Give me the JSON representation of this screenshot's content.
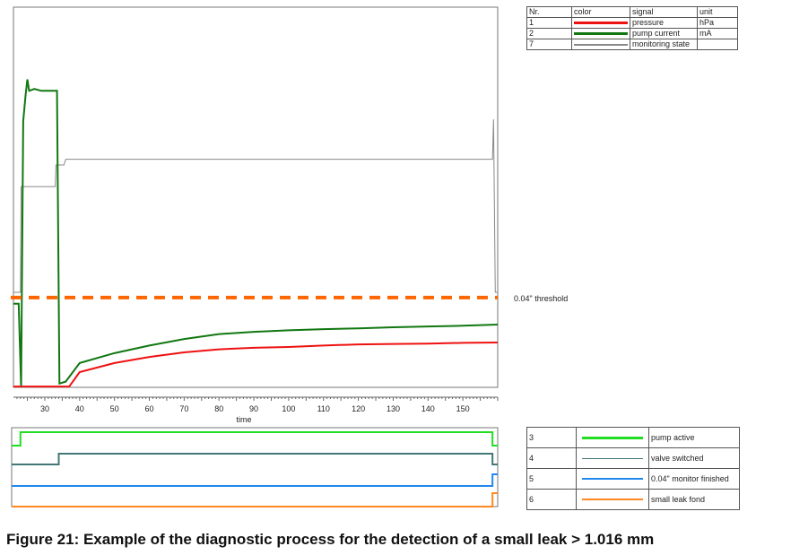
{
  "chart_data": [
    {
      "type": "line",
      "title": "",
      "xlabel": "time",
      "ylabel": "",
      "xlim": [
        21,
        160
      ],
      "ylim": [
        0,
        100
      ],
      "xticks": [
        30,
        40,
        50,
        60,
        70,
        80,
        90,
        100,
        110,
        120,
        130,
        140,
        150
      ],
      "threshold": {
        "label": "0.04\" threshold",
        "value": 23.6,
        "color": "#ff6600"
      },
      "series": [
        {
          "nr": "1",
          "name": "pressure",
          "unit": "hPa",
          "color": "#ee1111",
          "x": [
            21,
            37,
            40,
            50,
            60,
            70,
            80,
            90,
            100,
            110,
            120,
            130,
            140,
            150,
            160
          ],
          "y": [
            0.2,
            0.2,
            4,
            6.4,
            8,
            9.2,
            10,
            10.4,
            10.6,
            11,
            11.3,
            11.4,
            11.5,
            11.7,
            11.8
          ]
        },
        {
          "nr": "2",
          "name": "pump current",
          "unit": "mA",
          "color": "#117711",
          "x": [
            21,
            22.5,
            23.2,
            23.8,
            24.5,
            25,
            25.5,
            27,
            29,
            31,
            33.5,
            34.2,
            36,
            40,
            50,
            60,
            70,
            80,
            90,
            100,
            110,
            120,
            130,
            140,
            150,
            160
          ],
          "y": [
            22,
            22,
            0,
            70,
            77,
            81,
            78,
            78.5,
            78,
            78,
            78,
            1,
            1.5,
            6.4,
            9,
            11,
            12.7,
            14,
            14.6,
            15,
            15.3,
            15.5,
            15.8,
            16,
            16.2,
            16.5
          ]
        },
        {
          "nr": "7",
          "name": "monitoring state",
          "unit": "",
          "color": "#888888",
          "x": [
            21,
            23,
            23.2,
            33,
            33.2,
            35.5,
            36,
            158.5,
            158.8,
            159.3,
            160
          ],
          "y": [
            25,
            25,
            52.8,
            52.8,
            58.5,
            58.5,
            60,
            60,
            70.5,
            25,
            25
          ]
        }
      ]
    },
    {
      "type": "line",
      "title": "",
      "xlim": [
        21,
        160
      ],
      "series": [
        {
          "nr": "3",
          "name": "pump active",
          "color": "#22dd22",
          "x": [
            21,
            23,
            158.5,
            160
          ],
          "y": [
            0,
            1,
            0,
            0
          ]
        },
        {
          "nr": "4",
          "name": "valve switched",
          "color": "#447777",
          "x": [
            21,
            34,
            158.5,
            160
          ],
          "y": [
            0,
            1,
            0,
            0
          ]
        },
        {
          "nr": "5",
          "name": "0.04\" monitor finished",
          "color": "#2288ee",
          "x": [
            21,
            158.5,
            160
          ],
          "y": [
            0,
            1,
            1
          ]
        },
        {
          "nr": "6",
          "name": "small leak fond",
          "color": "#ff8822",
          "x": [
            21,
            158.5,
            160
          ],
          "y": [
            0,
            1,
            1
          ]
        }
      ]
    }
  ],
  "legend_top": {
    "headers": [
      "Nr.",
      "color",
      "signal",
      "unit"
    ]
  },
  "caption": "Figure 21: Example of the diagnostic process for the detection of a small leak > 1.016 mm"
}
